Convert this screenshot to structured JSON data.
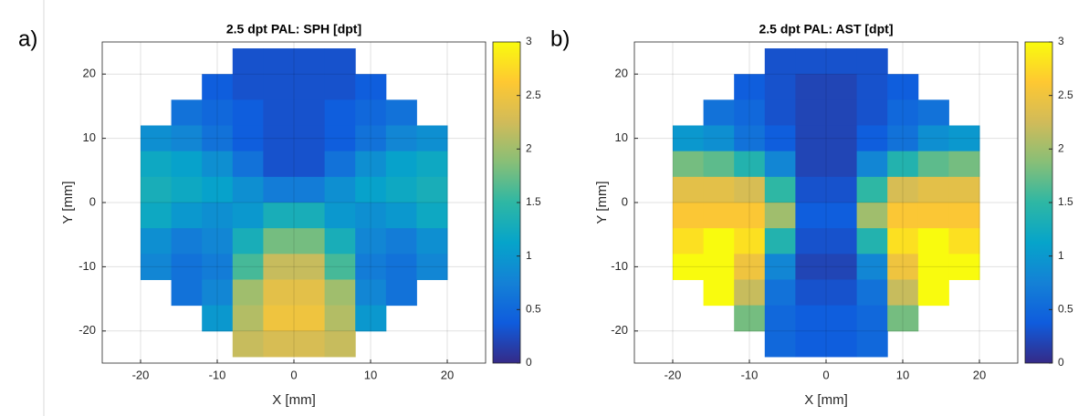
{
  "chart_data": [
    {
      "type": "heatmap",
      "panel_label": "a)",
      "title": "2.5 dpt PAL: SPH [dpt]",
      "x_label": "X [mm]",
      "y_label": "Y [mm]",
      "x": [
        -18,
        -14,
        -10,
        -6,
        -2,
        2,
        6,
        10,
        14,
        18
      ],
      "y": [
        22,
        18,
        14,
        10,
        6,
        2,
        -2,
        -6,
        -10,
        -14,
        -18,
        -22
      ],
      "values": [
        [
          null,
          null,
          null,
          0.3,
          0.3,
          0.3,
          0.3,
          null,
          null,
          null
        ],
        [
          null,
          null,
          0.4,
          0.3,
          0.3,
          0.3,
          0.3,
          0.4,
          null,
          null
        ],
        [
          null,
          0.6,
          0.5,
          0.4,
          0.3,
          0.3,
          0.4,
          0.5,
          0.6,
          null
        ],
        [
          0.9,
          0.8,
          0.6,
          0.4,
          0.3,
          0.3,
          0.4,
          0.6,
          0.8,
          0.9
        ],
        [
          1.2,
          1.1,
          0.9,
          0.6,
          0.3,
          0.3,
          0.6,
          0.9,
          1.1,
          1.2
        ],
        [
          1.3,
          1.2,
          1.1,
          0.9,
          0.7,
          0.7,
          0.9,
          1.1,
          1.2,
          1.3
        ],
        [
          1.2,
          1.0,
          0.9,
          1.0,
          1.3,
          1.3,
          1.0,
          0.9,
          1.0,
          1.2
        ],
        [
          0.9,
          0.7,
          0.8,
          1.3,
          1.8,
          1.8,
          1.3,
          0.8,
          0.7,
          0.9
        ],
        [
          0.8,
          0.6,
          0.7,
          1.6,
          2.2,
          2.2,
          1.6,
          0.7,
          0.6,
          0.8
        ],
        [
          null,
          0.6,
          0.8,
          2.0,
          2.4,
          2.4,
          2.0,
          0.8,
          0.6,
          null
        ],
        [
          null,
          null,
          1.0,
          2.1,
          2.5,
          2.5,
          2.1,
          1.0,
          null,
          null
        ],
        [
          null,
          null,
          null,
          2.2,
          2.3,
          2.3,
          2.2,
          null,
          null,
          null
        ]
      ],
      "xlim": [
        -25,
        25
      ],
      "ylim": [
        -25,
        25
      ],
      "xticks": [
        -20,
        -10,
        0,
        10,
        20
      ],
      "yticks": [
        -20,
        -10,
        0,
        10,
        20
      ],
      "clim": [
        0,
        3
      ],
      "cticks": [
        0,
        0.5,
        1,
        1.5,
        2,
        2.5,
        3
      ],
      "colormap": "parula",
      "grid": true
    },
    {
      "type": "heatmap",
      "panel_label": "b)",
      "title": "2.5 dpt PAL: AST [dpt]",
      "x_label": "X [mm]",
      "y_label": "Y [mm]",
      "x": [
        -18,
        -14,
        -10,
        -6,
        -2,
        2,
        6,
        10,
        14,
        18
      ],
      "y": [
        22,
        18,
        14,
        10,
        6,
        2,
        -2,
        -6,
        -10,
        -14,
        -18,
        -22
      ],
      "values": [
        [
          null,
          null,
          null,
          0.3,
          0.3,
          0.3,
          0.3,
          null,
          null,
          null
        ],
        [
          null,
          null,
          0.4,
          0.3,
          0.2,
          0.2,
          0.3,
          0.4,
          null,
          null
        ],
        [
          null,
          0.6,
          0.5,
          0.3,
          0.2,
          0.2,
          0.3,
          0.5,
          0.6,
          null
        ],
        [
          1.0,
          0.9,
          0.6,
          0.4,
          0.2,
          0.2,
          0.4,
          0.6,
          0.9,
          1.0
        ],
        [
          1.8,
          1.7,
          1.4,
          0.8,
          0.2,
          0.2,
          0.8,
          1.4,
          1.7,
          1.8
        ],
        [
          2.4,
          2.4,
          2.3,
          1.5,
          0.3,
          0.3,
          1.5,
          2.3,
          2.4,
          2.4
        ],
        [
          2.6,
          2.6,
          2.6,
          2.0,
          0.4,
          0.4,
          2.0,
          2.6,
          2.6,
          2.6
        ],
        [
          2.8,
          3.0,
          2.8,
          1.4,
          0.3,
          0.3,
          1.4,
          2.8,
          3.0,
          2.8
        ],
        [
          3.0,
          3.0,
          2.5,
          0.8,
          0.2,
          0.2,
          0.8,
          2.5,
          3.0,
          3.0
        ],
        [
          null,
          3.0,
          2.2,
          0.6,
          0.3,
          0.3,
          0.6,
          2.2,
          3.0,
          null
        ],
        [
          null,
          null,
          1.8,
          0.5,
          0.4,
          0.4,
          0.5,
          1.8,
          null,
          null
        ],
        [
          null,
          null,
          null,
          0.5,
          0.4,
          0.4,
          0.5,
          null,
          null,
          null
        ]
      ],
      "xlim": [
        -25,
        25
      ],
      "ylim": [
        -25,
        25
      ],
      "xticks": [
        -20,
        -10,
        0,
        10,
        20
      ],
      "yticks": [
        -20,
        -10,
        0,
        10,
        20
      ],
      "clim": [
        0,
        3
      ],
      "cticks": [
        0,
        0.5,
        1,
        1.5,
        2,
        2.5,
        3
      ],
      "colormap": "parula",
      "grid": true
    }
  ]
}
